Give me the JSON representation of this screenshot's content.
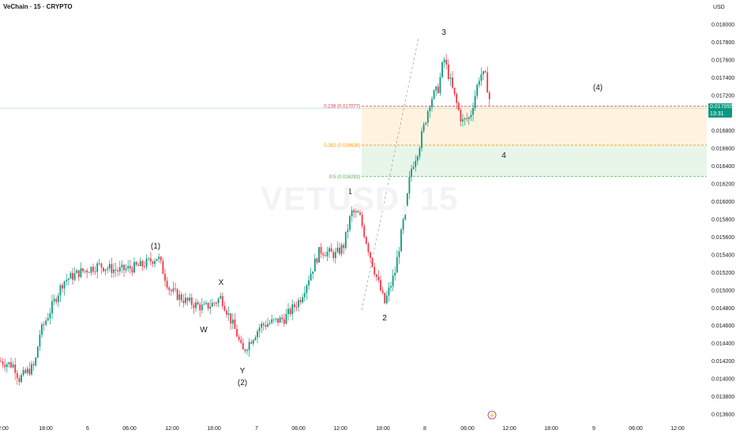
{
  "header": {
    "title": "VeChain · 15 · CRYPTO",
    "currency": "USD"
  },
  "watermark": "VETUSD, 15",
  "price_badge": {
    "price": "0.017055",
    "countdown": "13:31"
  },
  "colors": {
    "up": "#089981",
    "down": "#f23645",
    "fib236": "#f23645",
    "fib382": "#ff9800",
    "fib5": "#4caf50",
    "zone_orange": "#fff3e0",
    "zone_green": "#e8f5e9",
    "badge": "#089981"
  },
  "chart_data": {
    "type": "candlestick",
    "symbol": "VETUSD",
    "interval": "15",
    "y_axis": {
      "min": 0.0135,
      "max": 0.0182,
      "ticks": [
        "0.018000",
        "0.017800",
        "0.017600",
        "0.017400",
        "0.017200",
        "0.016800",
        "0.016600",
        "0.016400",
        "0.016200",
        "0.016000",
        "0.015800",
        "0.015600",
        "0.015400",
        "0.015200",
        "0.015000",
        "0.014800",
        "0.014600",
        "0.014400",
        "0.014200",
        "0.014000",
        "0.013800",
        "0.013600"
      ]
    },
    "x_axis": {
      "ticks": [
        "2:00",
        "18:00",
        "6",
        "06:00",
        "12:00",
        "18:00",
        "7",
        "06:00",
        "12:00",
        "18:00",
        "8",
        "06:00",
        "12:00",
        "18:00",
        "9",
        "06:00",
        "12:00"
      ]
    },
    "price_path": [
      {
        "t": 0,
        "p": 0.0142
      },
      {
        "t": 18,
        "p": 0.01415
      },
      {
        "t": 24,
        "p": 0.014
      },
      {
        "t": 44,
        "p": 0.01415
      },
      {
        "t": 50,
        "p": 0.0145
      },
      {
        "t": 80,
        "p": 0.0151
      },
      {
        "t": 100,
        "p": 0.0152
      },
      {
        "t": 125,
        "p": 0.01528
      },
      {
        "t": 150,
        "p": 0.01522
      },
      {
        "t": 180,
        "p": 0.01528
      },
      {
        "t": 200,
        "p": 0.01538
      },
      {
        "t": 215,
        "p": 0.015
      },
      {
        "t": 235,
        "p": 0.01488
      },
      {
        "t": 258,
        "p": 0.0148
      },
      {
        "t": 270,
        "p": 0.01485
      },
      {
        "t": 280,
        "p": 0.01492
      },
      {
        "t": 300,
        "p": 0.0145
      },
      {
        "t": 307,
        "p": 0.0143
      },
      {
        "t": 330,
        "p": 0.0146
      },
      {
        "t": 360,
        "p": 0.01468
      },
      {
        "t": 380,
        "p": 0.0149
      },
      {
        "t": 405,
        "p": 0.01545
      },
      {
        "t": 425,
        "p": 0.0154
      },
      {
        "t": 435,
        "p": 0.0155
      },
      {
        "t": 445,
        "p": 0.01588
      },
      {
        "t": 455,
        "p": 0.01585
      },
      {
        "t": 470,
        "p": 0.01535
      },
      {
        "t": 487,
        "p": 0.01485
      },
      {
        "t": 500,
        "p": 0.0152
      },
      {
        "t": 515,
        "p": 0.016
      },
      {
        "t": 520,
        "p": 0.01635
      },
      {
        "t": 530,
        "p": 0.0166
      },
      {
        "t": 545,
        "p": 0.01715
      },
      {
        "t": 555,
        "p": 0.01728
      },
      {
        "t": 562,
        "p": 0.01762
      },
      {
        "t": 575,
        "p": 0.0172
      },
      {
        "t": 585,
        "p": 0.0169
      },
      {
        "t": 595,
        "p": 0.01695
      },
      {
        "t": 608,
        "p": 0.01745
      },
      {
        "t": 615,
        "p": 0.0174
      },
      {
        "t": 622,
        "p": 0.01705
      }
    ],
    "fib_levels": [
      {
        "label": "0.236 (0.017077)",
        "value": 0.017077
      },
      {
        "label": "0.382 (0.016638)",
        "value": 0.016638
      },
      {
        "label": "0.5 (0.016283)",
        "value": 0.016283
      }
    ],
    "wave_labels": [
      "(1)",
      "X",
      "W",
      "Y",
      "(2)",
      "1",
      "2",
      "3",
      "4",
      "(4)"
    ],
    "last_price": 0.017055
  }
}
